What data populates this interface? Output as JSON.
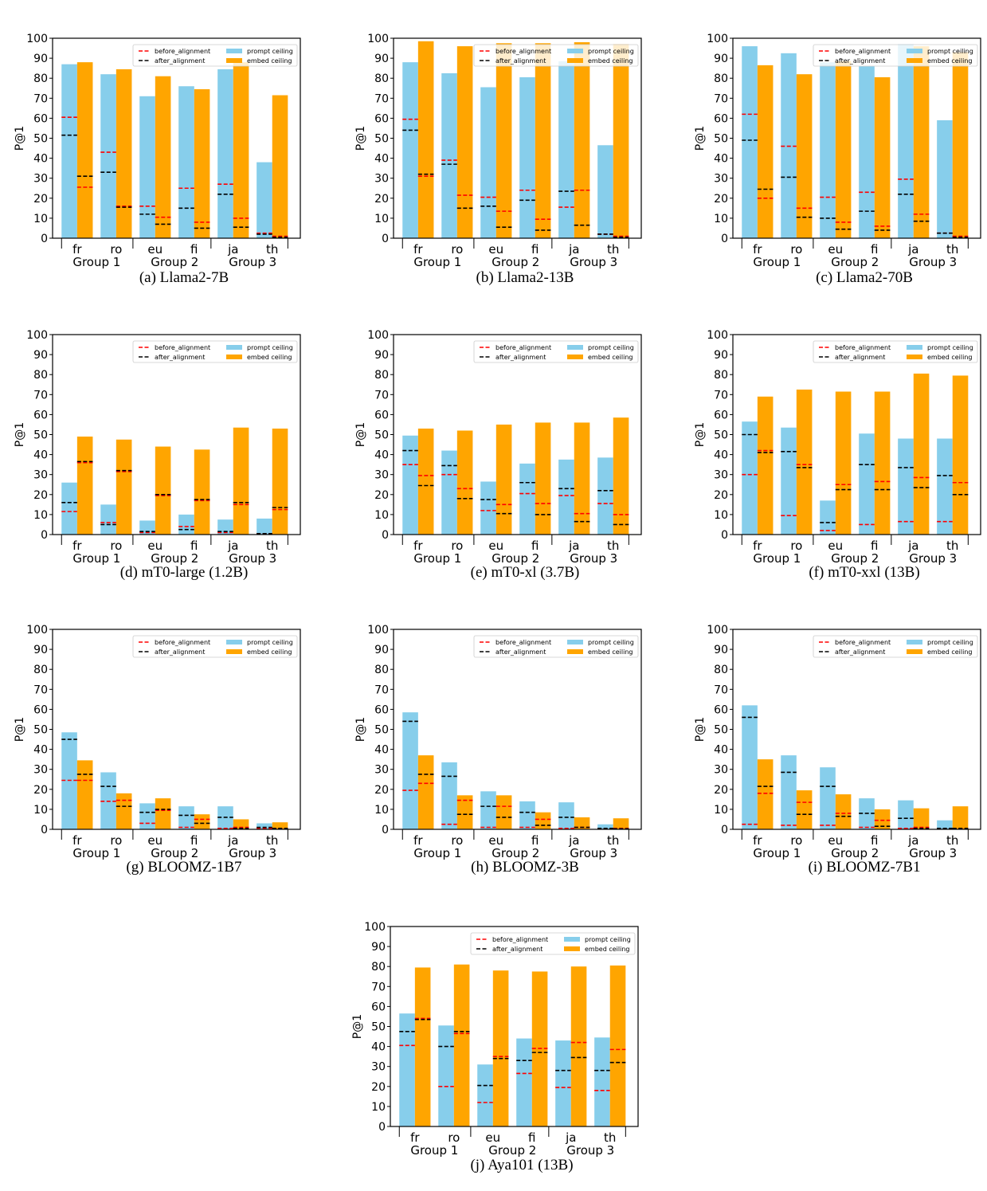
{
  "legend": {
    "before": "before_alignment",
    "after": "after_alignment",
    "prompt": "prompt ceiling",
    "embed": "embed ceiling"
  },
  "colors": {
    "prompt": "#87ceeb",
    "embed": "#ffa500",
    "before": "#ff0000",
    "after": "#000000"
  },
  "chart_data": [
    {
      "type": "bar",
      "caption": "(a) Llama2-7B",
      "ylabel": "P@1",
      "ylim": [
        0,
        100
      ],
      "yticks": [
        0,
        10,
        20,
        30,
        40,
        50,
        60,
        70,
        80,
        90,
        100
      ],
      "categories": [
        "fr",
        "ro",
        "eu",
        "fi",
        "ja",
        "th"
      ],
      "groups": [
        "Group 1",
        "Group 2",
        "Group 3"
      ],
      "legend_position": "top-right",
      "series": [
        {
          "name": "prompt ceiling",
          "values": [
            87,
            82,
            71,
            76,
            84.5,
            38
          ]
        },
        {
          "name": "embed ceiling",
          "values": [
            88,
            84.5,
            81,
            74.5,
            88,
            71.5
          ]
        }
      ],
      "before_alignment": {
        "prompt": [
          60.5,
          43,
          16,
          25,
          27,
          2.5
        ],
        "embed": [
          25.5,
          16,
          10.5,
          8,
          10,
          1
        ]
      },
      "after_alignment": {
        "prompt": [
          51.5,
          33,
          12,
          15,
          22,
          2
        ],
        "embed": [
          31,
          15.5,
          7,
          5,
          5.5,
          0.5
        ]
      }
    },
    {
      "type": "bar",
      "caption": "(b) Llama2-13B",
      "ylabel": "P@1",
      "ylim": [
        0,
        100
      ],
      "yticks": [
        0,
        10,
        20,
        30,
        40,
        50,
        60,
        70,
        80,
        90,
        100
      ],
      "categories": [
        "fr",
        "ro",
        "eu",
        "fi",
        "ja",
        "th"
      ],
      "groups": [
        "Group 1",
        "Group 2",
        "Group 3"
      ],
      "legend_position": "top-right",
      "series": [
        {
          "name": "prompt ceiling",
          "values": [
            88,
            82.5,
            75.5,
            80.5,
            88.5,
            46.5
          ]
        },
        {
          "name": "embed ceiling",
          "values": [
            98.5,
            96,
            97.5,
            97.5,
            98,
            97
          ]
        }
      ],
      "before_alignment": {
        "prompt": [
          59.5,
          39,
          20.5,
          24,
          15.5,
          2
        ],
        "embed": [
          31,
          21.5,
          13.5,
          9.5,
          24,
          1
        ]
      },
      "after_alignment": {
        "prompt": [
          54,
          37,
          16,
          19,
          23.5,
          2
        ],
        "embed": [
          32,
          15,
          5.5,
          4,
          6.5,
          0.5
        ]
      }
    },
    {
      "type": "bar",
      "caption": "(c) Llama2-70B",
      "ylabel": "P@1",
      "ylim": [
        0,
        100
      ],
      "yticks": [
        0,
        10,
        20,
        30,
        40,
        50,
        60,
        70,
        80,
        90,
        100
      ],
      "categories": [
        "fr",
        "ro",
        "eu",
        "fi",
        "ja",
        "th"
      ],
      "groups": [
        "Group 1",
        "Group 2",
        "Group 3"
      ],
      "legend_position": "top-right",
      "series": [
        {
          "name": "prompt ceiling",
          "values": [
            96,
            92.5,
            88,
            86,
            97,
            59
          ]
        },
        {
          "name": "embed ceiling",
          "values": [
            86.5,
            82,
            88.5,
            80.5,
            96,
            93
          ]
        }
      ],
      "before_alignment": {
        "prompt": [
          62,
          46,
          20.5,
          23,
          29.5,
          2.5
        ],
        "embed": [
          20,
          15,
          8,
          6,
          12,
          1
        ]
      },
      "after_alignment": {
        "prompt": [
          49,
          30.5,
          10,
          13.5,
          22,
          2.5
        ],
        "embed": [
          24.5,
          10.5,
          4.5,
          4,
          8.5,
          0.5
        ]
      }
    },
    {
      "type": "bar",
      "caption": "(d) mT0-large (1.2B)",
      "ylabel": "P@1",
      "ylim": [
        0,
        100
      ],
      "yticks": [
        0,
        10,
        20,
        30,
        40,
        50,
        60,
        70,
        80,
        90,
        100
      ],
      "categories": [
        "fr",
        "ro",
        "eu",
        "fi",
        "ja",
        "th"
      ],
      "groups": [
        "Group 1",
        "Group 2",
        "Group 3"
      ],
      "legend_position": "top-right",
      "series": [
        {
          "name": "prompt ceiling",
          "values": [
            26,
            15,
            7,
            10,
            7.5,
            8
          ]
        },
        {
          "name": "embed ceiling",
          "values": [
            49,
            47.5,
            44,
            42.5,
            53.5,
            53
          ]
        }
      ],
      "before_alignment": {
        "prompt": [
          11.5,
          6,
          1,
          4,
          1,
          0.5
        ],
        "embed": [
          36,
          31.5,
          19.5,
          17,
          15,
          12.5
        ]
      },
      "after_alignment": {
        "prompt": [
          16,
          5,
          1.5,
          2.5,
          1.5,
          0.5
        ],
        "embed": [
          36.5,
          32,
          20,
          17.5,
          16,
          13.5
        ]
      }
    },
    {
      "type": "bar",
      "caption": "(e) mT0-xl (3.7B)",
      "ylabel": "P@1",
      "ylim": [
        0,
        100
      ],
      "yticks": [
        0,
        10,
        20,
        30,
        40,
        50,
        60,
        70,
        80,
        90,
        100
      ],
      "categories": [
        "fr",
        "ro",
        "eu",
        "fi",
        "ja",
        "th"
      ],
      "groups": [
        "Group 1",
        "Group 2",
        "Group 3"
      ],
      "legend_position": "top-right",
      "series": [
        {
          "name": "prompt ceiling",
          "values": [
            49.5,
            42,
            26.5,
            35.5,
            37.5,
            38.5
          ]
        },
        {
          "name": "embed ceiling",
          "values": [
            53,
            52,
            55,
            56,
            56,
            58.5
          ]
        }
      ],
      "before_alignment": {
        "prompt": [
          35,
          30,
          12,
          20.5,
          19.5,
          15.5
        ],
        "embed": [
          29.5,
          23,
          15,
          15.5,
          10.5,
          10
        ]
      },
      "after_alignment": {
        "prompt": [
          42,
          34.5,
          17.5,
          26,
          23,
          22
        ],
        "embed": [
          24.5,
          18,
          10.5,
          10,
          6.5,
          5
        ]
      }
    },
    {
      "type": "bar",
      "caption": "(f) mT0-xxl (13B)",
      "ylabel": "P@1",
      "ylim": [
        0,
        100
      ],
      "yticks": [
        0,
        10,
        20,
        30,
        40,
        50,
        60,
        70,
        80,
        90,
        100
      ],
      "categories": [
        "fr",
        "ro",
        "eu",
        "fi",
        "ja",
        "th"
      ],
      "groups": [
        "Group 1",
        "Group 2",
        "Group 3"
      ],
      "legend_position": "top-right",
      "series": [
        {
          "name": "prompt ceiling",
          "values": [
            56.5,
            53.5,
            17,
            50.5,
            48,
            48
          ]
        },
        {
          "name": "embed ceiling",
          "values": [
            69,
            72.5,
            71.5,
            71.5,
            80.5,
            79.5
          ]
        }
      ],
      "before_alignment": {
        "prompt": [
          30,
          9.5,
          2,
          5,
          6.5,
          6.5
        ],
        "embed": [
          42,
          35,
          25,
          26.5,
          28.5,
          26
        ]
      },
      "after_alignment": {
        "prompt": [
          50,
          41.5,
          6,
          35,
          33.5,
          29.5
        ],
        "embed": [
          41,
          33.5,
          22.5,
          22.5,
          23.5,
          20
        ]
      }
    },
    {
      "type": "bar",
      "caption": "(g) BLOOMZ-1B7",
      "ylabel": "P@1",
      "ylim": [
        0,
        100
      ],
      "yticks": [
        0,
        10,
        20,
        30,
        40,
        50,
        60,
        70,
        80,
        90,
        100
      ],
      "categories": [
        "fr",
        "ro",
        "eu",
        "fi",
        "ja",
        "th"
      ],
      "groups": [
        "Group 1",
        "Group 2",
        "Group 3"
      ],
      "legend_position": "top-right",
      "series": [
        {
          "name": "prompt ceiling",
          "values": [
            48.5,
            28.5,
            13,
            11.5,
            11.5,
            3
          ]
        },
        {
          "name": "embed ceiling",
          "values": [
            34.5,
            18,
            15.5,
            7.5,
            5,
            3.5
          ]
        }
      ],
      "before_alignment": {
        "prompt": [
          24.5,
          14,
          3,
          1,
          0.5,
          0.5
        ],
        "embed": [
          24.5,
          14.5,
          9.5,
          5,
          1,
          0.5
        ]
      },
      "after_alignment": {
        "prompt": [
          45,
          21.5,
          8.5,
          7,
          6,
          1
        ],
        "embed": [
          27.5,
          11.5,
          10,
          3,
          0.5,
          0.5
        ]
      }
    },
    {
      "type": "bar",
      "caption": "(h) BLOOMZ-3B",
      "ylabel": "P@1",
      "ylim": [
        0,
        100
      ],
      "yticks": [
        0,
        10,
        20,
        30,
        40,
        50,
        60,
        70,
        80,
        90,
        100
      ],
      "categories": [
        "fr",
        "ro",
        "eu",
        "fi",
        "ja",
        "th"
      ],
      "groups": [
        "Group 1",
        "Group 2",
        "Group 3"
      ],
      "legend_position": "top-right",
      "series": [
        {
          "name": "prompt ceiling",
          "values": [
            58.5,
            33.5,
            19,
            14,
            13.5,
            2.5
          ]
        },
        {
          "name": "embed ceiling",
          "values": [
            37,
            17,
            17,
            8.5,
            6,
            5.5
          ]
        }
      ],
      "before_alignment": {
        "prompt": [
          19.5,
          2.5,
          1,
          1,
          0.5,
          0.3
        ],
        "embed": [
          23,
          14.5,
          11.5,
          5,
          1,
          0.5
        ]
      },
      "after_alignment": {
        "prompt": [
          54,
          26.5,
          11.5,
          8.5,
          6,
          0.5
        ],
        "embed": [
          27.5,
          7.5,
          6,
          2,
          1,
          0.3
        ]
      }
    },
    {
      "type": "bar",
      "caption": "(i) BLOOMZ-7B1",
      "ylabel": "P@1",
      "ylim": [
        0,
        100
      ],
      "yticks": [
        0,
        10,
        20,
        30,
        40,
        50,
        60,
        70,
        80,
        90,
        100
      ],
      "categories": [
        "fr",
        "ro",
        "eu",
        "fi",
        "ja",
        "th"
      ],
      "groups": [
        "Group 1",
        "Group 2",
        "Group 3"
      ],
      "legend_position": "top-right",
      "series": [
        {
          "name": "prompt ceiling",
          "values": [
            62,
            37,
            31,
            15.5,
            14.5,
            4.5
          ]
        },
        {
          "name": "embed ceiling",
          "values": [
            35,
            19.5,
            17.5,
            10,
            10.5,
            11.5
          ]
        }
      ],
      "before_alignment": {
        "prompt": [
          2.5,
          2,
          2,
          1,
          0.5,
          0.3
        ],
        "embed": [
          18,
          13.5,
          8,
          4.5,
          1,
          0.5
        ]
      },
      "after_alignment": {
        "prompt": [
          56,
          28.5,
          21.5,
          8,
          5.5,
          0.5
        ],
        "embed": [
          21.5,
          7.5,
          6.5,
          1.5,
          0.5,
          0.5
        ]
      }
    },
    {
      "type": "bar",
      "caption": "(j) Aya101 (13B)",
      "ylabel": "P@1",
      "ylim": [
        0,
        100
      ],
      "yticks": [
        0,
        10,
        20,
        30,
        40,
        50,
        60,
        70,
        80,
        90,
        100
      ],
      "categories": [
        "fr",
        "ro",
        "eu",
        "fi",
        "ja",
        "th"
      ],
      "groups": [
        "Group 1",
        "Group 2",
        "Group 3"
      ],
      "legend_position": "top-right",
      "series": [
        {
          "name": "prompt ceiling",
          "values": [
            56.5,
            50.5,
            31,
            44,
            43,
            44.5
          ]
        },
        {
          "name": "embed ceiling",
          "values": [
            79.5,
            81,
            78,
            77.5,
            80,
            80.5
          ]
        }
      ],
      "before_alignment": {
        "prompt": [
          40.5,
          20,
          12,
          26.5,
          19.5,
          18
        ],
        "embed": [
          54,
          46.5,
          35,
          39,
          42,
          38.5
        ]
      },
      "after_alignment": {
        "prompt": [
          47.5,
          40,
          20.5,
          33,
          28,
          28
        ],
        "embed": [
          53.5,
          47.5,
          34,
          37,
          34.5,
          32
        ]
      }
    }
  ]
}
